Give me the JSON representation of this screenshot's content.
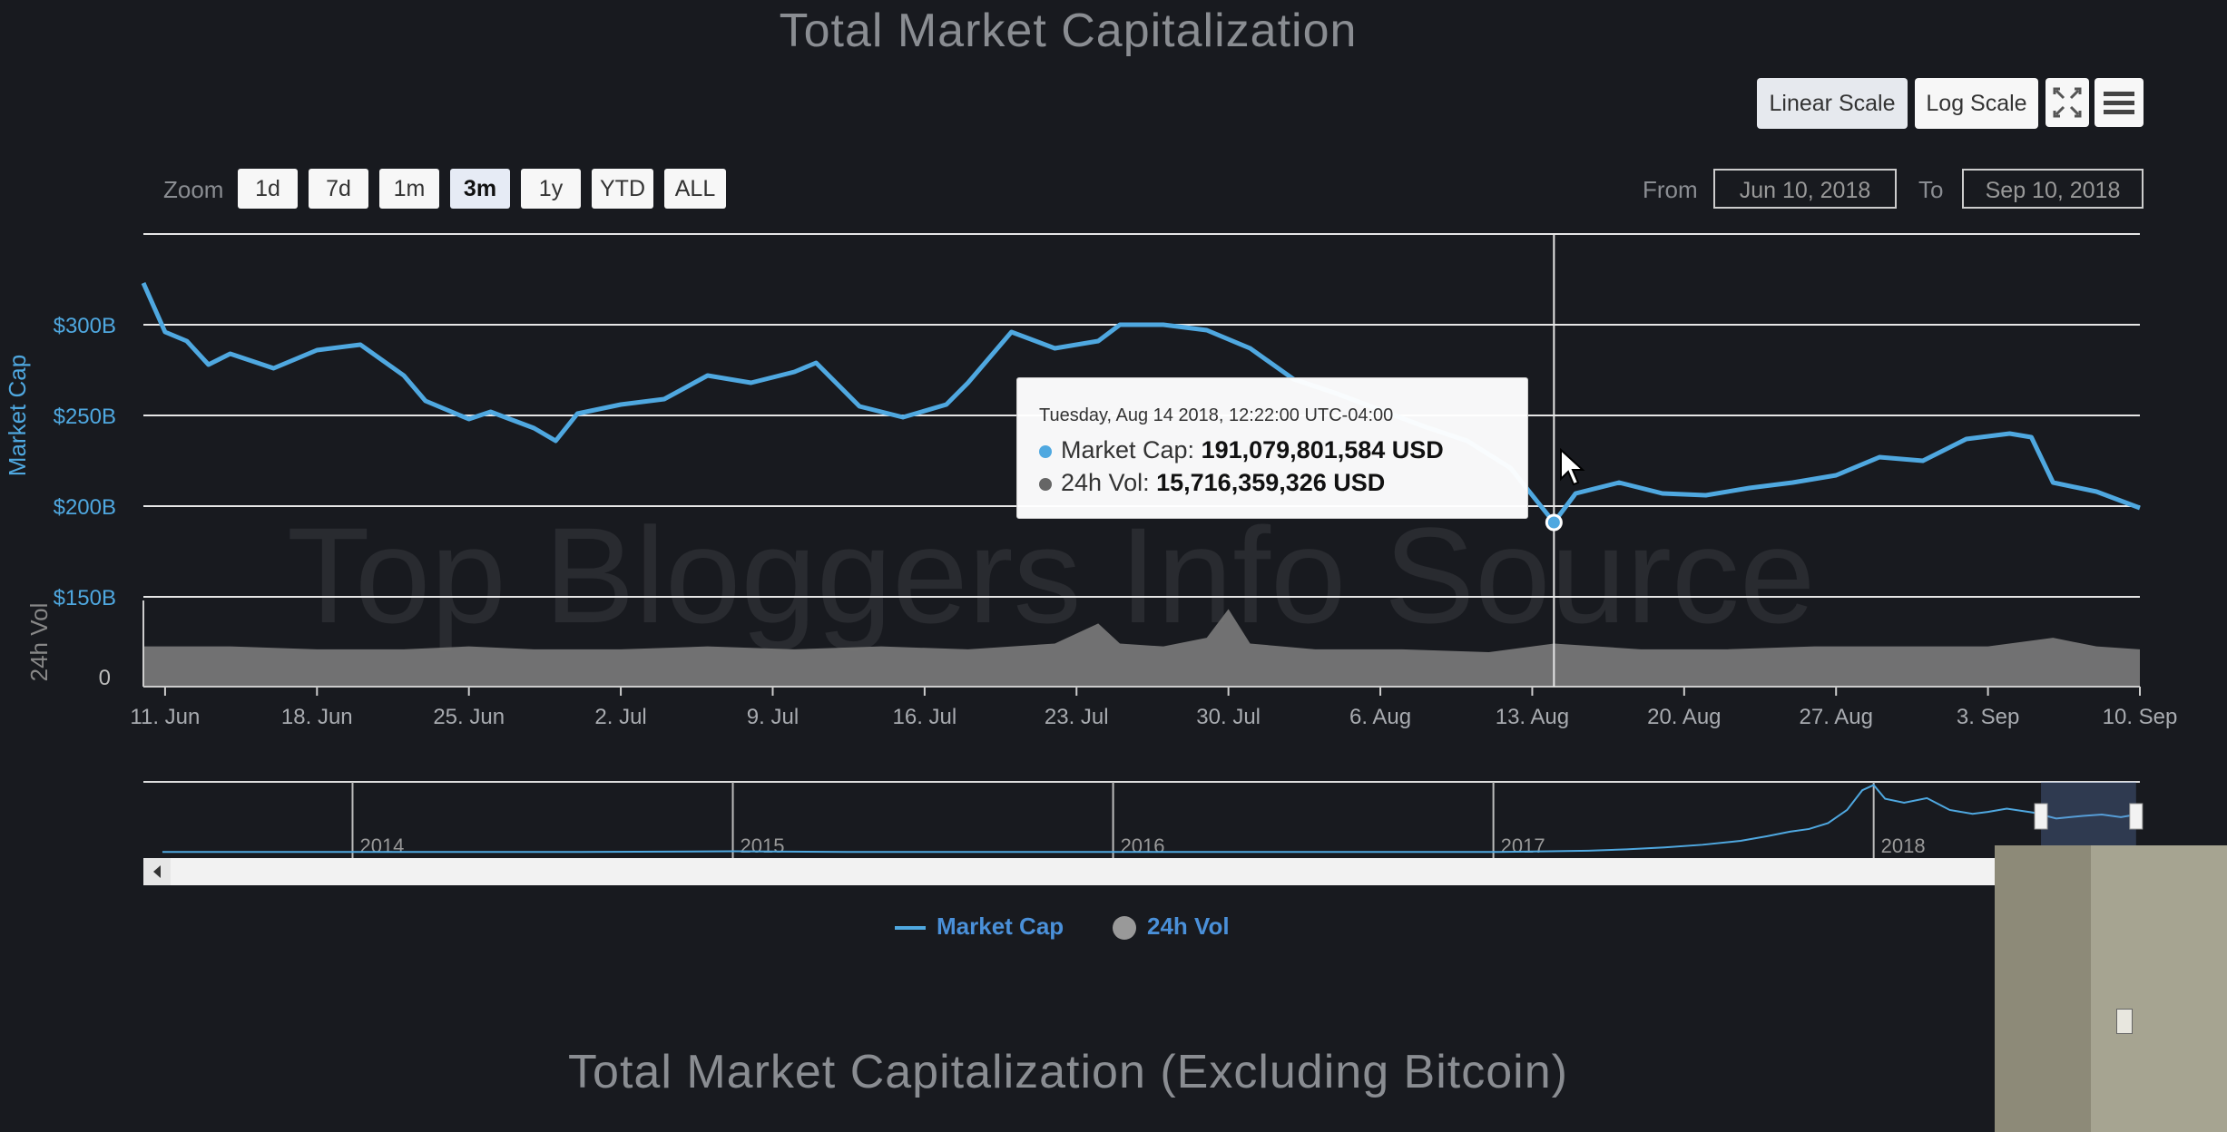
{
  "header": {
    "title": "Total Market Capitalization"
  },
  "scale_buttons": {
    "linear": "Linear Scale",
    "log": "Log Scale"
  },
  "icons": {
    "fullscreen": "fullscreen-icon",
    "menu": "hamburger-menu-icon"
  },
  "zoom": {
    "label": "Zoom",
    "options": [
      "1d",
      "7d",
      "1m",
      "3m",
      "1y",
      "YTD",
      "ALL"
    ],
    "selected": "3m"
  },
  "range": {
    "from_label": "From",
    "from_value": "Jun 10, 2018",
    "to_label": "To",
    "to_value": "Sep 10, 2018"
  },
  "tooltip": {
    "date": "Tuesday, Aug 14 2018, 12:22:00 UTC-04:00",
    "mcap_label": "Market Cap:",
    "mcap_value": "191,079,801,584 USD",
    "vol_label": "24h Vol:",
    "vol_value": "15,716,359,326 USD"
  },
  "watermark": "Top Bloggers Info Source",
  "legend": {
    "market_cap": "Market Cap",
    "vol": "24h Vol"
  },
  "second_title": "Total Market Capitalization (Excluding Bitcoin)",
  "colors": {
    "market_cap": "#4fa8e0",
    "volume": "#7b7b7b",
    "background": "#181a1f",
    "grid": "#e6e6e6"
  },
  "chart_data": {
    "type": "line",
    "ylabel": "Market Cap",
    "ylabel2": "24h Vol",
    "y_ticks": [
      "$300B",
      "$250B",
      "$200B",
      "$150B"
    ],
    "y2_ticks": [
      "0"
    ],
    "ylim": [
      150,
      350
    ],
    "x_ticks": [
      "11. Jun",
      "18. Jun",
      "25. Jun",
      "2. Jul",
      "9. Jul",
      "16. Jul",
      "23. Jul",
      "30. Jul",
      "6. Aug",
      "13. Aug",
      "20. Aug",
      "27. Aug",
      "3. Sep",
      "10. Sep"
    ],
    "x_range": [
      "2018-06-10",
      "2018-09-10"
    ],
    "grid": true,
    "series": [
      {
        "name": "Market Cap",
        "x": [
          "2018-06-10",
          "2018-06-11",
          "2018-06-12",
          "2018-06-13",
          "2018-06-14",
          "2018-06-15",
          "2018-06-16",
          "2018-06-18",
          "2018-06-20",
          "2018-06-22",
          "2018-06-23",
          "2018-06-24",
          "2018-06-25",
          "2018-06-26",
          "2018-06-28",
          "2018-06-29",
          "2018-06-30",
          "2018-07-02",
          "2018-07-04",
          "2018-07-06",
          "2018-07-08",
          "2018-07-10",
          "2018-07-11",
          "2018-07-13",
          "2018-07-15",
          "2018-07-17",
          "2018-07-18",
          "2018-07-20",
          "2018-07-22",
          "2018-07-24",
          "2018-07-25",
          "2018-07-27",
          "2018-07-29",
          "2018-07-31",
          "2018-08-02",
          "2018-08-04",
          "2018-08-06",
          "2018-08-08",
          "2018-08-10",
          "2018-08-12",
          "2018-08-14",
          "2018-08-15",
          "2018-08-17",
          "2018-08-19",
          "2018-08-21",
          "2018-08-23",
          "2018-08-25",
          "2018-08-27",
          "2018-08-29",
          "2018-08-31",
          "2018-09-02",
          "2018-09-04",
          "2018-09-05",
          "2018-09-06",
          "2018-09-08",
          "2018-09-10"
        ],
        "values": [
          323,
          296,
          291,
          278,
          284,
          280,
          276,
          286,
          289,
          272,
          258,
          253,
          248,
          252,
          243,
          236,
          251,
          256,
          259,
          272,
          268,
          274,
          279,
          255,
          249,
          256,
          268,
          296,
          287,
          291,
          300,
          300,
          297,
          287,
          270,
          262,
          253,
          244,
          236,
          221,
          191,
          207,
          213,
          207,
          206,
          210,
          213,
          217,
          227,
          225,
          237,
          240,
          238,
          213,
          208,
          199
        ]
      },
      {
        "name": "24h Vol",
        "x": [
          "2018-06-10",
          "2018-06-14",
          "2018-06-18",
          "2018-06-22",
          "2018-06-25",
          "2018-06-28",
          "2018-07-02",
          "2018-07-06",
          "2018-07-10",
          "2018-07-14",
          "2018-07-18",
          "2018-07-22",
          "2018-07-24",
          "2018-07-25",
          "2018-07-27",
          "2018-07-29",
          "2018-07-30",
          "2018-07-31",
          "2018-08-03",
          "2018-08-07",
          "2018-08-11",
          "2018-08-14",
          "2018-08-18",
          "2018-08-22",
          "2018-08-26",
          "2018-08-30",
          "2018-09-03",
          "2018-09-06",
          "2018-09-08",
          "2018-09-10"
        ],
        "values": [
          14,
          14,
          13,
          13,
          14,
          13,
          13,
          14,
          13,
          14,
          13,
          15,
          22,
          15,
          14,
          17,
          27,
          15,
          13,
          13,
          12,
          15,
          13,
          13,
          14,
          14,
          14,
          17,
          14,
          13
        ]
      }
    ]
  },
  "navigator": {
    "years": [
      "2014",
      "2015",
      "2016",
      "2017",
      "2018"
    ],
    "values": [
      0.1,
      0.1,
      0.1,
      0.1,
      0.2,
      0.1,
      0.1,
      0.1,
      0.1,
      0.1,
      0.1,
      0.1,
      0.2,
      0.3,
      0.5,
      0.8,
      1.2,
      1.8,
      2.5,
      3.2,
      3.6,
      4.5,
      6.5,
      9.5,
      10.3,
      8.2,
      7.6,
      8.3,
      6.5,
      5.9,
      6.2,
      6.7,
      6.1,
      5.2,
      5.6,
      5.8,
      5.4,
      5.8
    ],
    "value_years": [
      2013.5,
      2014.0,
      2014.3,
      2014.6,
      2015.0,
      2015.3,
      2015.6,
      2016.0,
      2016.3,
      2016.6,
      2016.8,
      2017.0,
      2017.15,
      2017.25,
      2017.35,
      2017.45,
      2017.55,
      2017.65,
      2017.72,
      2017.78,
      2017.83,
      2017.88,
      2017.93,
      2017.97,
      2018.0,
      2018.03,
      2018.08,
      2018.14,
      2018.2,
      2018.26,
      2018.3,
      2018.35,
      2018.42,
      2018.48,
      2018.55,
      2018.6,
      2018.65,
      2018.69
    ],
    "year_range": [
      2013.45,
      2018.7
    ]
  }
}
